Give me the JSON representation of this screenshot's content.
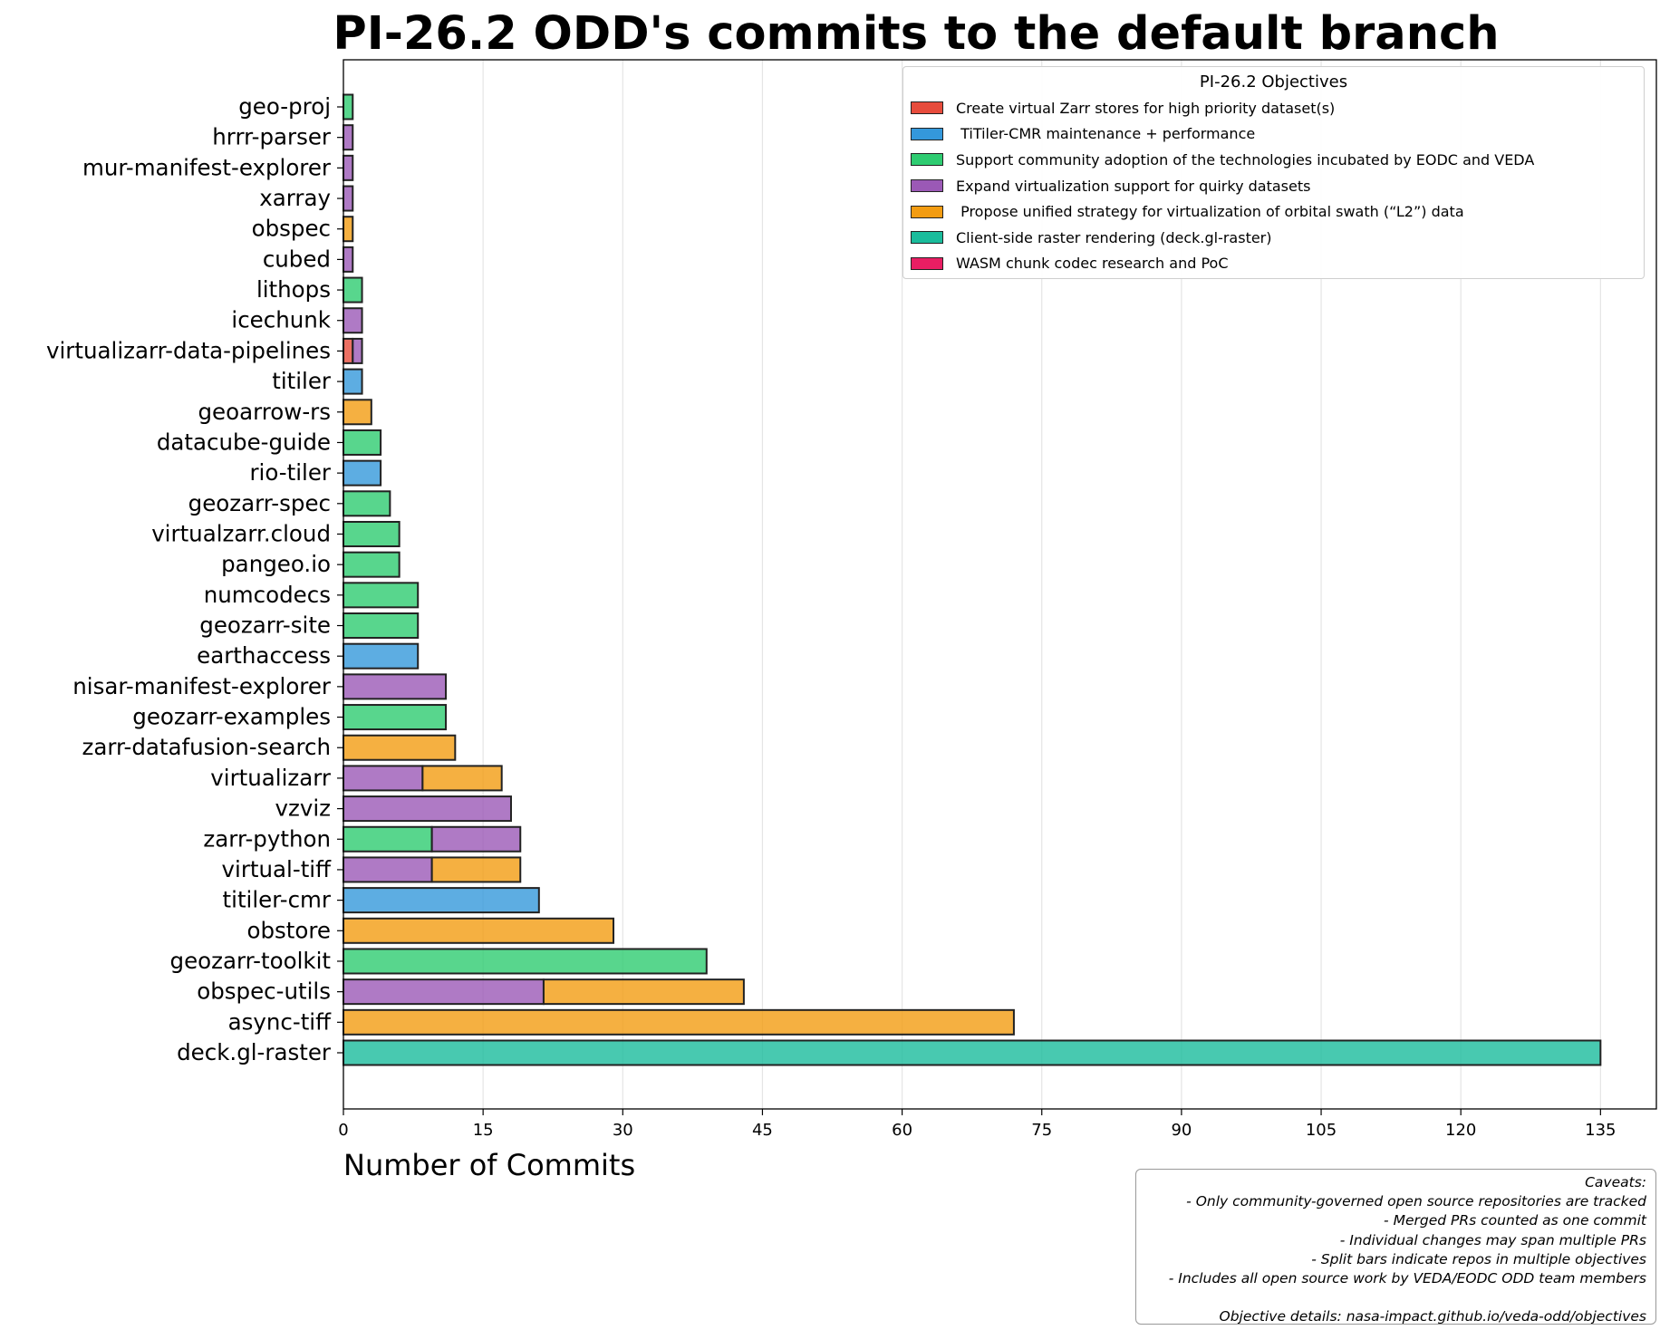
{
  "chart_data": {
    "type": "bar",
    "orientation": "horizontal",
    "stacked": true,
    "title": "PI-26.2 ODD's commits to the default branch",
    "xlabel": "Number of Commits",
    "ylabel": "",
    "xlim": [
      0,
      141
    ],
    "xticks": [
      0,
      15,
      30,
      45,
      60,
      75,
      90,
      105,
      120,
      135
    ],
    "grid": "x",
    "legend_title": "PI-26.2 Objectives",
    "legend_placement": "top-right",
    "objectives": [
      {
        "name": "Create virtual Zarr stores for high priority dataset(s)",
        "color": "#e74c3c"
      },
      {
        "name": " TiTiler-CMR maintenance + performance",
        "color": "#3498db"
      },
      {
        "name": "Support community adoption of the technologies incubated by EODC and VEDA",
        "color": "#2ecc71"
      },
      {
        "name": "Expand virtualization support for quirky datasets",
        "color": "#9b59b6"
      },
      {
        "name": " Propose unified strategy for virtualization of orbital swath (“L2”) data",
        "color": "#f39c12"
      },
      {
        "name": "Client-side raster rendering (deck.gl-raster)",
        "color": "#1abc9c"
      },
      {
        "name": "WASM chunk codec research and PoC",
        "color": "#e91e63"
      }
    ],
    "repos": [
      {
        "name": "geo-proj",
        "segments": [
          {
            "objective": 2,
            "value": 1
          }
        ]
      },
      {
        "name": "hrrr-parser",
        "segments": [
          {
            "objective": 3,
            "value": 1
          }
        ]
      },
      {
        "name": "mur-manifest-explorer",
        "segments": [
          {
            "objective": 3,
            "value": 1
          }
        ]
      },
      {
        "name": "xarray",
        "segments": [
          {
            "objective": 3,
            "value": 1
          }
        ]
      },
      {
        "name": "obspec",
        "segments": [
          {
            "objective": 4,
            "value": 1
          }
        ]
      },
      {
        "name": "cubed",
        "segments": [
          {
            "objective": 3,
            "value": 1
          }
        ]
      },
      {
        "name": "lithops",
        "segments": [
          {
            "objective": 2,
            "value": 2
          }
        ]
      },
      {
        "name": "icechunk",
        "segments": [
          {
            "objective": 3,
            "value": 2
          }
        ]
      },
      {
        "name": "virtualizarr-data-pipelines",
        "segments": [
          {
            "objective": 0,
            "value": 1
          },
          {
            "objective": 3,
            "value": 1
          }
        ]
      },
      {
        "name": "titiler",
        "segments": [
          {
            "objective": 1,
            "value": 2
          }
        ]
      },
      {
        "name": "geoarrow-rs",
        "segments": [
          {
            "objective": 4,
            "value": 3
          }
        ]
      },
      {
        "name": "datacube-guide",
        "segments": [
          {
            "objective": 2,
            "value": 4
          }
        ]
      },
      {
        "name": "rio-tiler",
        "segments": [
          {
            "objective": 1,
            "value": 4
          }
        ]
      },
      {
        "name": "geozarr-spec",
        "segments": [
          {
            "objective": 2,
            "value": 5
          }
        ]
      },
      {
        "name": "virtualzarr.cloud",
        "segments": [
          {
            "objective": 2,
            "value": 6
          }
        ]
      },
      {
        "name": "pangeo.io",
        "segments": [
          {
            "objective": 2,
            "value": 6
          }
        ]
      },
      {
        "name": "numcodecs",
        "segments": [
          {
            "objective": 2,
            "value": 8
          }
        ]
      },
      {
        "name": "geozarr-site",
        "segments": [
          {
            "objective": 2,
            "value": 8
          }
        ]
      },
      {
        "name": "earthaccess",
        "segments": [
          {
            "objective": 1,
            "value": 8
          }
        ]
      },
      {
        "name": "nisar-manifest-explorer",
        "segments": [
          {
            "objective": 3,
            "value": 11
          }
        ]
      },
      {
        "name": "geozarr-examples",
        "segments": [
          {
            "objective": 2,
            "value": 11
          }
        ]
      },
      {
        "name": "zarr-datafusion-search",
        "segments": [
          {
            "objective": 4,
            "value": 12
          }
        ]
      },
      {
        "name": "virtualizarr",
        "segments": [
          {
            "objective": 3,
            "value": 8.5
          },
          {
            "objective": 4,
            "value": 8.5
          }
        ]
      },
      {
        "name": "vzviz",
        "segments": [
          {
            "objective": 3,
            "value": 18
          }
        ]
      },
      {
        "name": "zarr-python",
        "segments": [
          {
            "objective": 2,
            "value": 9.5
          },
          {
            "objective": 3,
            "value": 9.5
          }
        ]
      },
      {
        "name": "virtual-tiff",
        "segments": [
          {
            "objective": 3,
            "value": 9.5
          },
          {
            "objective": 4,
            "value": 9.5
          }
        ]
      },
      {
        "name": "titiler-cmr",
        "segments": [
          {
            "objective": 1,
            "value": 21
          }
        ]
      },
      {
        "name": "obstore",
        "segments": [
          {
            "objective": 4,
            "value": 29
          }
        ]
      },
      {
        "name": "geozarr-toolkit",
        "segments": [
          {
            "objective": 2,
            "value": 39
          }
        ]
      },
      {
        "name": "obspec-utils",
        "segments": [
          {
            "objective": 3,
            "value": 21.5
          },
          {
            "objective": 4,
            "value": 21.5
          }
        ]
      },
      {
        "name": "async-tiff",
        "segments": [
          {
            "objective": 4,
            "value": 72
          }
        ]
      },
      {
        "name": "deck.gl-raster",
        "segments": [
          {
            "objective": 5,
            "value": 135
          }
        ]
      }
    ]
  },
  "caveats": [
    "Caveats:",
    "- Only community-governed open source repositories are tracked",
    "- Merged PRs counted as one commit",
    "- Individual changes may span multiple PRs",
    "- Split bars indicate repos in multiple objectives",
    "- Includes all open source work by VEDA/EODC ODD team members",
    "",
    "Objective details: nasa-impact.github.io/veda-odd/objectives"
  ]
}
